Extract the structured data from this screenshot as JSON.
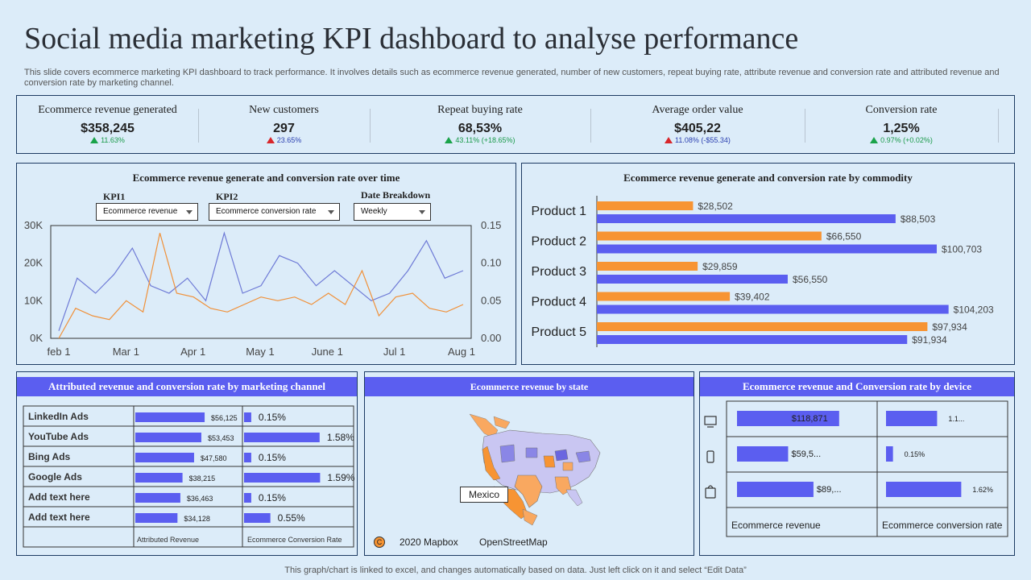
{
  "header": {
    "title": "Social media marketing KPI dashboard to analyse performance",
    "subtitle": "This slide covers ecommerce marketing KPI dashboard to track performance. It involves details such as ecommerce revenue generated, number of new customers, repeat buying rate, attribute revenue and conversion rate and attributed revenue and conversion rate by marketing channel."
  },
  "kpis": [
    {
      "label": "Ecommerce revenue generated",
      "value": "$358,245",
      "change": "11.63%",
      "direction": "up",
      "color": "#1aa34a"
    },
    {
      "label": "New customers",
      "value": "297",
      "change": "23.65%",
      "direction": "down",
      "color": "#d8262b"
    },
    {
      "label": "Repeat buying rate",
      "value": "68,53%",
      "change": "43.11% (+18.65%)",
      "direction": "up",
      "color": "#1aa34a"
    },
    {
      "label": "Average order value",
      "value": "$405,22",
      "change": "11.08% (-$55.34)",
      "direction": "down",
      "color": "#d8262b"
    },
    {
      "label": "Conversion rate",
      "value": "1,25%",
      "change": "0.97% (+0.02%)",
      "direction": "up",
      "color": "#1aa34a"
    }
  ],
  "time_panel": {
    "title": "Ecommerce revenue generate and conversion rate over time",
    "kpi1_label": "KPI1",
    "kpi1_value": "Ecommerce revenue",
    "kpi2_label": "KPI2",
    "kpi2_value": "Ecommerce conversion rate",
    "date_label": "Date Breakdown",
    "date_value": "Weekly"
  },
  "commodity_panel": {
    "title": "Ecommerce revenue generate and conversion rate by commodity"
  },
  "channel_panel": {
    "title": "Attributed revenue and conversion rate by marketing channel",
    "col1": "Attributed Revenue",
    "col2": "Ecommerce  Conversion Rate"
  },
  "state_panel": {
    "title": "Ecommerce revenue by state",
    "map_label": "Mexico",
    "attribution_icon": "C",
    "attribution_1": "2020 Mapbox",
    "attribution_2": "OpenStreetMap"
  },
  "device_panel": {
    "title": "Ecommerce revenue and Conversion rate by device",
    "col1": "Ecommerce revenue",
    "col2": "Ecommerce conversion rate"
  },
  "footer": "This graph/chart is linked to excel, and changes automatically based on data. Just left click on it and select “Edit Data”",
  "chart_data": [
    {
      "type": "line",
      "title": "Ecommerce revenue generate and conversion rate over time",
      "x_ticks": [
        "feb 1",
        "Mar 1",
        "Apr 1",
        "May 1",
        "June 1",
        "Jul 1",
        "Aug 1"
      ],
      "y_left_ticks": [
        "0K",
        "10K",
        "20K",
        "30K"
      ],
      "y_right_ticks": [
        "0.00",
        "0.05",
        "0.10",
        "0.15"
      ],
      "ylim_left": [
        0,
        30000
      ],
      "ylim_right": [
        0,
        0.15
      ],
      "series": [
        {
          "axis": "left",
          "color": "#6e7ad6",
          "values": [
            2000,
            16000,
            12000,
            17000,
            24000,
            14000,
            12000,
            16000,
            10000,
            28000,
            12000,
            14000,
            22000,
            20000,
            14000,
            18000,
            14000,
            10000,
            12000,
            18000,
            26000,
            16000,
            18000
          ]
        },
        {
          "axis": "right",
          "color": "#f0913a",
          "values": [
            0.0,
            0.04,
            0.03,
            0.025,
            0.05,
            0.035,
            0.14,
            0.06,
            0.055,
            0.04,
            0.035,
            0.045,
            0.055,
            0.05,
            0.055,
            0.045,
            0.06,
            0.045,
            0.09,
            0.03,
            0.055,
            0.06,
            0.04,
            0.035,
            0.045
          ]
        }
      ]
    },
    {
      "type": "bar",
      "orientation": "horizontal",
      "title": "Ecommerce revenue generate and conversion rate by commodity",
      "categories": [
        "Product 1",
        "Product 2",
        "Product 3",
        "Product 4",
        "Product 5"
      ],
      "series": [
        {
          "color": "#f79433",
          "values": [
            28502,
            66550,
            29859,
            39402,
            97934
          ],
          "labels": [
            "$28,502",
            "$66,550",
            "$29,859",
            "$39,402",
            "$97,934"
          ]
        },
        {
          "color": "#5b5ef0",
          "values": [
            88503,
            100703,
            56550,
            104203,
            91934
          ],
          "labels": [
            "$88,503",
            "$100,703",
            "$56,550",
            "$104,203",
            "$91,934"
          ]
        }
      ],
      "xlim": [
        0,
        105000
      ]
    },
    {
      "type": "table",
      "title": "Attributed revenue and conversion rate by marketing channel",
      "rows": [
        {
          "channel": "LinkedIn Ads",
          "revenue": 56125,
          "revenue_label": "$56,125",
          "rate": 0.15,
          "rate_label": "0.15%"
        },
        {
          "channel": "YouTube Ads",
          "revenue": 53453,
          "revenue_label": "$53,453",
          "rate": 1.58,
          "rate_label": "1.58%"
        },
        {
          "channel": "Bing Ads",
          "revenue": 47580,
          "revenue_label": "$47,580",
          "rate": 0.15,
          "rate_label": "0.15%"
        },
        {
          "channel": "Google Ads",
          "revenue": 38215,
          "revenue_label": "$38,215",
          "rate": 1.59,
          "rate_label": "1.59%"
        },
        {
          "channel": "Add text here",
          "revenue": 36463,
          "revenue_label": "$36,463",
          "rate": 0.15,
          "rate_label": "0.15%"
        },
        {
          "channel": "Add text here",
          "revenue": 34128,
          "revenue_label": "$34,128",
          "rate": 0.55,
          "rate_label": "0.55%"
        }
      ],
      "revenue_max": 60000,
      "rate_max": 1.6
    },
    {
      "type": "table",
      "title": "Ecommerce revenue and Conversion rate by device",
      "rows": [
        {
          "device": "monitor-icon",
          "revenue": 118871,
          "revenue_label": "$118,871",
          "rate": 1.1,
          "rate_label": "1.1..."
        },
        {
          "device": "phone-icon",
          "revenue": 59500,
          "revenue_label": "$59,5...",
          "rate": 0.15,
          "rate_label": "0.15%"
        },
        {
          "device": "tablet-icon",
          "revenue": 89000,
          "revenue_label": "$89,...",
          "rate": 1.62,
          "rate_label": "1.62%"
        }
      ],
      "revenue_max": 120000,
      "rate_max": 1.7
    }
  ]
}
